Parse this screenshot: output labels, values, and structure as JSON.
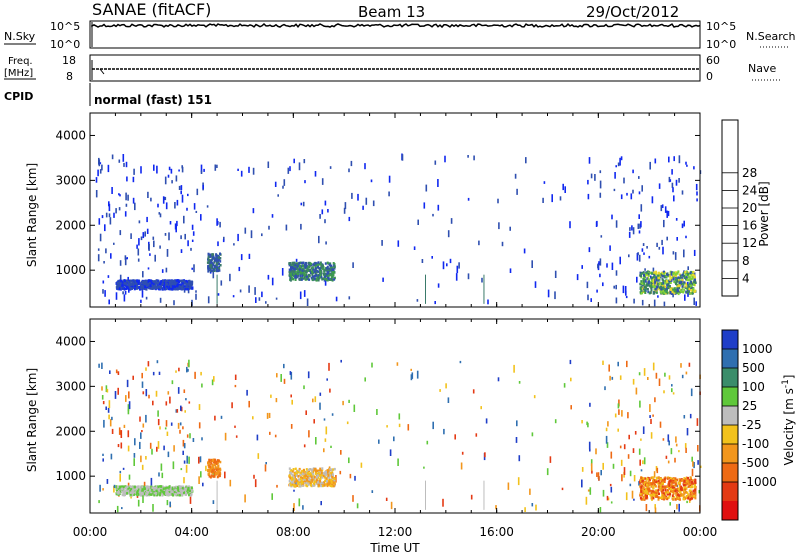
{
  "header": {
    "title": "SANAE (fitACF)",
    "beam": "Beam 13",
    "date": "29/Oct/2012"
  },
  "panels": {
    "nsky": {
      "left_label": "N.Sky",
      "left_ticks": [
        "10^5",
        "10^0"
      ],
      "right_label": "N.Search",
      "right_ticks": [
        "10^5",
        "10^0"
      ]
    },
    "freq": {
      "left_label_1": "Freq.",
      "left_label_2": "[MHz]",
      "left_ticks": [
        "18",
        "8"
      ],
      "right_label": "Nave",
      "right_ticks": [
        "60",
        "0"
      ]
    },
    "cpid": {
      "label": "CPID",
      "text": "normal (fast) 151"
    }
  },
  "chart_data": [
    {
      "type": "heatmap",
      "name": "power",
      "ylabel": "Slant Range [km]",
      "ylim": [
        180,
        4500
      ],
      "yticks": [
        1000,
        2000,
        3000,
        4000
      ],
      "xlim": [
        0,
        24
      ],
      "colorbar": {
        "label": "Power [dB]",
        "ticks": [
          "4",
          "8",
          "12",
          "16",
          "20",
          "24",
          "28"
        ],
        "colors": [
          "#1028f0",
          "#2f4fb0",
          "#3a7a6a",
          "#3e9b4f",
          "#7fd13a",
          "#e8d82a",
          "#f2a21c",
          "#f0781a",
          "#e8491a",
          "#d81010"
        ]
      },
      "patches": [
        {
          "t": [
            1.0,
            4.0
          ],
          "r": [
            600,
            800
          ],
          "level": "low"
        },
        {
          "t": [
            4.6,
            5.1
          ],
          "r": [
            1000,
            1400
          ],
          "level": "low"
        },
        {
          "t": [
            7.8,
            9.6
          ],
          "r": [
            800,
            1200
          ],
          "level": "mid"
        },
        {
          "t": [
            21.6,
            23.8
          ],
          "r": [
            500,
            1000
          ],
          "level": "mid-high"
        }
      ]
    },
    {
      "type": "heatmap",
      "name": "velocity",
      "ylabel": "Slant Range [km]",
      "ylim": [
        180,
        4500
      ],
      "yticks": [
        1000,
        2000,
        3000,
        4000
      ],
      "xlim": [
        0,
        24
      ],
      "colorbar": {
        "label": "Velocity [m s^-1]",
        "ticks": [
          "1000",
          "500",
          "100",
          "25",
          "-25",
          "-100",
          "-500",
          "-1000"
        ],
        "colors": [
          "#1f3ec8",
          "#2f6fb0",
          "#3a8d6a",
          "#5fc83a",
          "#bdbdbd",
          "#f2c21c",
          "#f2961c",
          "#ee6a14",
          "#e43a14",
          "#e01010"
        ]
      },
      "patches": [
        {
          "t": [
            1.0,
            4.0
          ],
          "r": [
            600,
            800
          ],
          "level": "green-grey"
        },
        {
          "t": [
            4.6,
            5.1
          ],
          "r": [
            1000,
            1400
          ],
          "level": "orange"
        },
        {
          "t": [
            7.8,
            9.6
          ],
          "r": [
            800,
            1200
          ],
          "level": "orange-grey"
        },
        {
          "t": [
            21.6,
            23.8
          ],
          "r": [
            500,
            1000
          ],
          "level": "orange-red"
        }
      ]
    }
  ],
  "x_axis": {
    "label": "Time UT",
    "ticks": [
      "00:00",
      "04:00",
      "08:00",
      "12:00",
      "16:00",
      "20:00",
      "00:00"
    ]
  }
}
